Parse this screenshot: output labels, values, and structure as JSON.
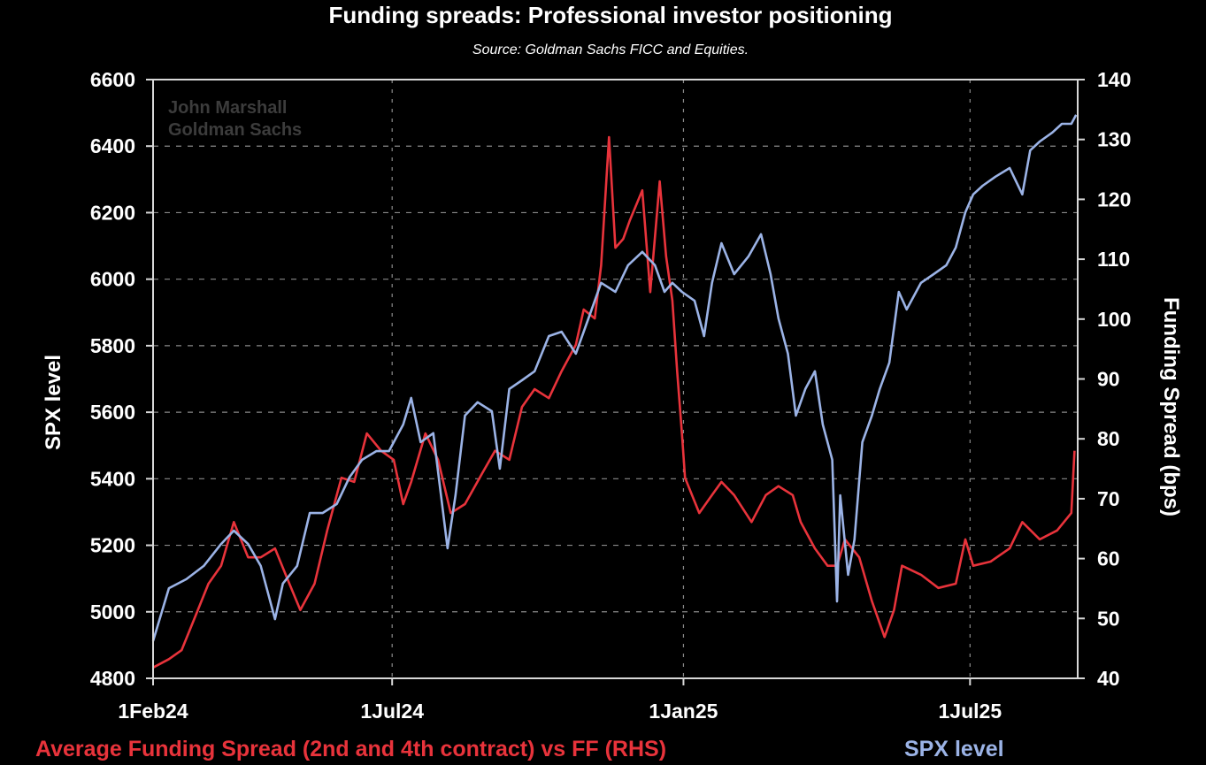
{
  "chart_data": {
    "type": "line",
    "title": "Funding spreads: Professional investor positioning",
    "subtitle": "Source: Goldman Sachs FICC and Equities.",
    "watermark": [
      "John Marshall",
      "Goldman Sachs"
    ],
    "x_start": "2024-02-01",
    "x_unit": "days since 1Feb24",
    "xlim": [
      0,
      584
    ],
    "x_ticks": [
      {
        "label": "1Feb24",
        "day": 0
      },
      {
        "label": "1Jul24",
        "day": 151
      },
      {
        "label": "1Jan25",
        "day": 335
      },
      {
        "label": "1Jul25",
        "day": 516
      }
    ],
    "ylabel_left": "SPX level",
    "ylim_left": [
      4800,
      6600
    ],
    "yticks_left": [
      "4800",
      "5000",
      "5200",
      "5400",
      "5600",
      "5800",
      "6000",
      "6200",
      "6400",
      "6600"
    ],
    "ylabel_right": "Funding Spread (bps)",
    "ylim_right": [
      40,
      140
    ],
    "yticks_right": [
      "40",
      "50",
      "60",
      "70",
      "80",
      "90",
      "100",
      "110",
      "120",
      "130",
      "140"
    ],
    "grid": true,
    "legend_placement": "bottom",
    "colors": {
      "funding": "#e8333b",
      "spx": "#9bb3e6",
      "grid": "#8a8a8a",
      "axis": "#d8d8d8"
    },
    "series": [
      {
        "name": "Average Funding Spread (2nd and 4th contract) vs FF (RHS)",
        "axis": "right",
        "points": [
          [
            0,
            41.8
          ],
          [
            10,
            43.2
          ],
          [
            18,
            44.7
          ],
          [
            26,
            49.9
          ],
          [
            35,
            55.8
          ],
          [
            43,
            58.8
          ],
          [
            51,
            66.1
          ],
          [
            60,
            60.2
          ],
          [
            68,
            60.2
          ],
          [
            77,
            61.7
          ],
          [
            85,
            56.5
          ],
          [
            93,
            51.4
          ],
          [
            102,
            55.8
          ],
          [
            110,
            64.7
          ],
          [
            119,
            73.5
          ],
          [
            127,
            72.8
          ],
          [
            135,
            80.9
          ],
          [
            144,
            78.0
          ],
          [
            152,
            76.5
          ],
          [
            158,
            69.1
          ],
          [
            163,
            72.8
          ],
          [
            172,
            80.9
          ],
          [
            180,
            76.5
          ],
          [
            188,
            67.6
          ],
          [
            197,
            69.1
          ],
          [
            208,
            74.3
          ],
          [
            216,
            78.0
          ],
          [
            225,
            76.5
          ],
          [
            233,
            85.3
          ],
          [
            241,
            88.3
          ],
          [
            250,
            86.8
          ],
          [
            258,
            91.3
          ],
          [
            267,
            95.7
          ],
          [
            272,
            101.6
          ],
          [
            279,
            100.1
          ],
          [
            283,
            109.0
          ],
          [
            288,
            130.4
          ],
          [
            292,
            111.9
          ],
          [
            297,
            113.4
          ],
          [
            301,
            116.4
          ],
          [
            309,
            121.5
          ],
          [
            314,
            104.5
          ],
          [
            320,
            123.0
          ],
          [
            324,
            110.5
          ],
          [
            328,
            103.1
          ],
          [
            331,
            91.3
          ],
          [
            334,
            80.9
          ],
          [
            336,
            73.5
          ],
          [
            345,
            67.6
          ],
          [
            353,
            70.6
          ],
          [
            359,
            72.8
          ],
          [
            367,
            70.6
          ],
          [
            378,
            66.1
          ],
          [
            387,
            70.6
          ],
          [
            395,
            72.1
          ],
          [
            404,
            70.6
          ],
          [
            409,
            66.1
          ],
          [
            418,
            61.7
          ],
          [
            426,
            58.8
          ],
          [
            432,
            58.8
          ],
          [
            437,
            63.2
          ],
          [
            446,
            60.2
          ],
          [
            454,
            52.9
          ],
          [
            462,
            46.9
          ],
          [
            468,
            51.4
          ],
          [
            473,
            58.8
          ],
          [
            485,
            57.3
          ],
          [
            496,
            55.1
          ],
          [
            507,
            55.8
          ],
          [
            513,
            63.2
          ],
          [
            518,
            58.8
          ],
          [
            529,
            59.5
          ],
          [
            541,
            61.7
          ],
          [
            549,
            66.1
          ],
          [
            560,
            63.2
          ],
          [
            571,
            64.7
          ],
          [
            580,
            67.6
          ],
          [
            582,
            78.0
          ]
        ]
      },
      {
        "name": "SPX level",
        "axis": "left",
        "points": [
          [
            0,
            4912
          ],
          [
            10,
            5071
          ],
          [
            21,
            5098
          ],
          [
            32,
            5138
          ],
          [
            43,
            5204
          ],
          [
            51,
            5244
          ],
          [
            60,
            5204
          ],
          [
            68,
            5138
          ],
          [
            77,
            4978
          ],
          [
            82,
            5085
          ],
          [
            91,
            5138
          ],
          [
            99,
            5297
          ],
          [
            107,
            5297
          ],
          [
            116,
            5324
          ],
          [
            124,
            5404
          ],
          [
            132,
            5457
          ],
          [
            141,
            5483
          ],
          [
            149,
            5483
          ],
          [
            158,
            5563
          ],
          [
            163,
            5643
          ],
          [
            169,
            5510
          ],
          [
            177,
            5537
          ],
          [
            186,
            5191
          ],
          [
            191,
            5350
          ],
          [
            197,
            5590
          ],
          [
            205,
            5630
          ],
          [
            214,
            5603
          ],
          [
            219,
            5430
          ],
          [
            225,
            5670
          ],
          [
            233,
            5696
          ],
          [
            241,
            5723
          ],
          [
            250,
            5829
          ],
          [
            258,
            5842
          ],
          [
            267,
            5776
          ],
          [
            275,
            5882
          ],
          [
            283,
            5989
          ],
          [
            292,
            5962
          ],
          [
            300,
            6042
          ],
          [
            309,
            6082
          ],
          [
            317,
            6042
          ],
          [
            323,
            5962
          ],
          [
            328,
            5989
          ],
          [
            334,
            5962
          ],
          [
            342,
            5935
          ],
          [
            348,
            5829
          ],
          [
            353,
            5989
          ],
          [
            359,
            6108
          ],
          [
            367,
            6015
          ],
          [
            376,
            6068
          ],
          [
            384,
            6135
          ],
          [
            390,
            6015
          ],
          [
            395,
            5882
          ],
          [
            401,
            5776
          ],
          [
            406,
            5590
          ],
          [
            412,
            5670
          ],
          [
            418,
            5723
          ],
          [
            423,
            5563
          ],
          [
            429,
            5457
          ],
          [
            432,
            5031
          ],
          [
            434,
            5350
          ],
          [
            439,
            5111
          ],
          [
            443,
            5217
          ],
          [
            448,
            5510
          ],
          [
            454,
            5590
          ],
          [
            459,
            5670
          ],
          [
            465,
            5749
          ],
          [
            471,
            5962
          ],
          [
            476,
            5909
          ],
          [
            485,
            5989
          ],
          [
            493,
            6015
          ],
          [
            501,
            6042
          ],
          [
            507,
            6095
          ],
          [
            513,
            6201
          ],
          [
            518,
            6255
          ],
          [
            524,
            6281
          ],
          [
            532,
            6308
          ],
          [
            541,
            6334
          ],
          [
            549,
            6255
          ],
          [
            554,
            6387
          ],
          [
            560,
            6414
          ],
          [
            568,
            6441
          ],
          [
            574,
            6467
          ],
          [
            580,
            6467
          ],
          [
            583,
            6494
          ]
        ]
      }
    ]
  }
}
